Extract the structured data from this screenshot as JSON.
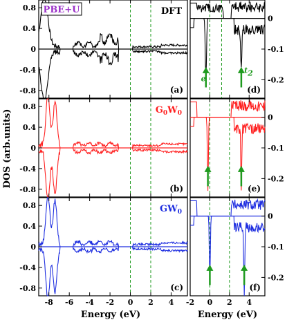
{
  "colors": {
    "DFT": "#000000",
    "G0W0": "#ff2020",
    "GW0": "#1f2fe0",
    "guide": "#1e9a1e",
    "arrow": "#1e9a1e",
    "legend_text": "#9b30c8"
  },
  "legend_box": {
    "text": "PBE+U"
  },
  "x_axis_label": "Energy (eV)",
  "y_axis_label": "DOS (arb.units)",
  "left_x_ticks": [
    "-8",
    "-6",
    "-4",
    "-2",
    "0",
    "2",
    "4"
  ],
  "right_x_ticks": [
    "-2",
    "0",
    "2",
    "4"
  ],
  "left_y_ticks": [
    "0.8",
    "0.4",
    "0",
    "-0.4",
    "-0.8"
  ],
  "right_y_ticks": [
    "0",
    "-0.1",
    "-0.2"
  ],
  "annotation_e": "e",
  "annotation_t2": "t",
  "annotation_t2_sub": "2",
  "chart_data": [
    {
      "type": "line",
      "panel": "(a)",
      "method": "DFT",
      "method_parts": [
        "DFT"
      ],
      "xlim": [
        -9,
        5.6
      ],
      "ylim": [
        -0.95,
        0.95
      ],
      "guides_x": [
        0,
        2
      ],
      "series": [
        {
          "name": "DFT",
          "color": "#000000"
        }
      ]
    },
    {
      "type": "line",
      "panel": "(b)",
      "method": "G0W0",
      "method_parts": [
        "G",
        "0",
        "W",
        "0"
      ],
      "xlim": [
        -9,
        5.6
      ],
      "ylim": [
        -0.95,
        0.95
      ],
      "guides_x": [
        0,
        2
      ],
      "series": [
        {
          "name": "G0W0",
          "color": "#ff2020"
        }
      ]
    },
    {
      "type": "line",
      "panel": "(c)",
      "method": "GW0",
      "method_parts": [
        "GW",
        "0"
      ],
      "xlim": [
        -9,
        5.6
      ],
      "ylim": [
        -0.95,
        0.95
      ],
      "guides_x": [
        0,
        2
      ],
      "series": [
        {
          "name": "GW0",
          "color": "#1f2fe0"
        }
      ]
    },
    {
      "type": "line",
      "panel": "(d)",
      "xlim": [
        -2,
        5.6
      ],
      "ylim": [
        -0.26,
        0.06
      ],
      "guides_x": [
        0,
        1.2
      ],
      "arrows_x": [
        -0.4,
        3.2
      ],
      "series": [
        {
          "name": "DFT",
          "color": "#000000"
        }
      ]
    },
    {
      "type": "line",
      "panel": "(e)",
      "xlim": [
        -2,
        5.6
      ],
      "ylim": [
        -0.26,
        0.06
      ],
      "guides_x": [
        0,
        2
      ],
      "arrows_x": [
        -0.2,
        3.2
      ],
      "series": [
        {
          "name": "G0W0",
          "color": "#ff2020"
        }
      ]
    },
    {
      "type": "line",
      "panel": "(f)",
      "xlim": [
        -2,
        5.6
      ],
      "ylim": [
        -0.26,
        0.06
      ],
      "guides_x": [
        0,
        2
      ],
      "arrows_x": [
        0,
        3.5
      ],
      "series": [
        {
          "name": "GW0",
          "color": "#1f2fe0"
        }
      ]
    }
  ]
}
